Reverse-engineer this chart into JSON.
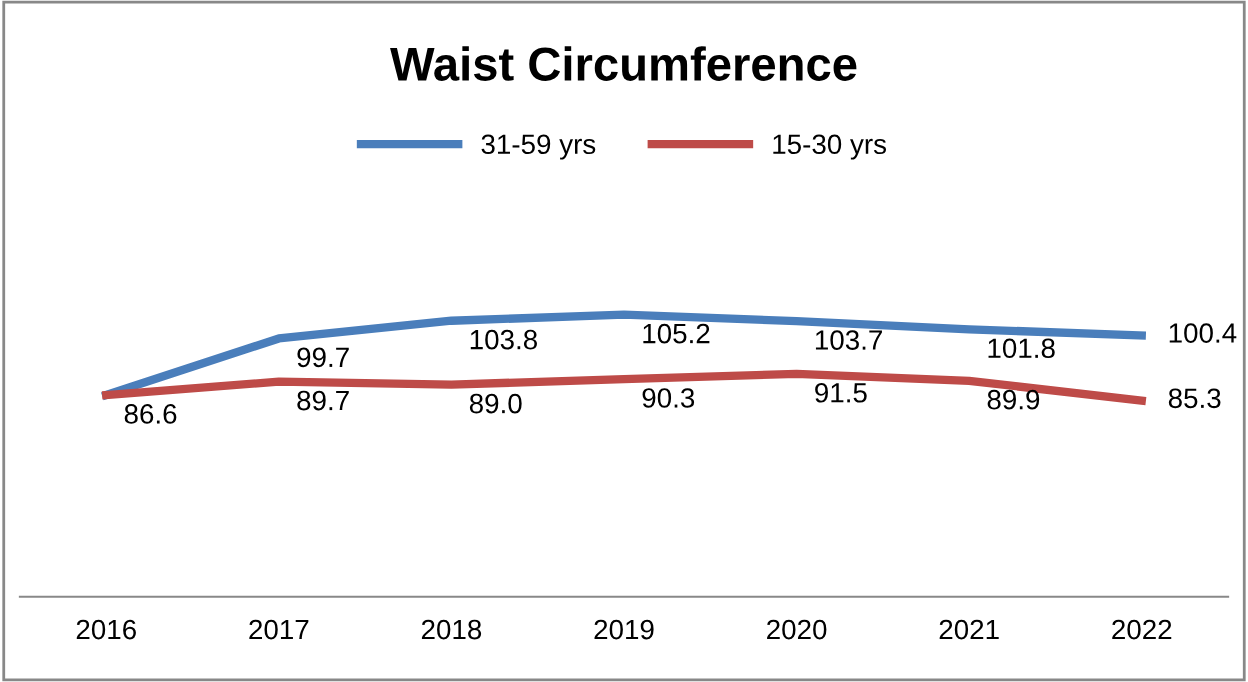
{
  "chart_data": {
    "type": "line",
    "title": "Waist Circumference",
    "categories": [
      "2016",
      "2017",
      "2018",
      "2019",
      "2020",
      "2021",
      "2022"
    ],
    "series": [
      {
        "name": "31-59 yrs",
        "color": "#4a7ebb",
        "values": [
          86.6,
          99.7,
          103.8,
          105.2,
          103.7,
          101.8,
          100.4
        ],
        "value_labels": [
          null,
          "99.7",
          "103.8",
          "105.2",
          "103.7",
          "101.8",
          "100.4"
        ]
      },
      {
        "name": "15-30 yrs",
        "color": "#be4b48",
        "values": [
          86.6,
          89.7,
          89.0,
          90.3,
          91.5,
          89.9,
          85.3
        ],
        "value_labels": [
          "86.6",
          "89.7",
          "89.0",
          "90.3",
          "91.5",
          "89.9",
          "85.3"
        ]
      }
    ],
    "tick_labels": "x",
    "grid": false,
    "legend": "top",
    "marker": "none",
    "line_style": "solid"
  }
}
